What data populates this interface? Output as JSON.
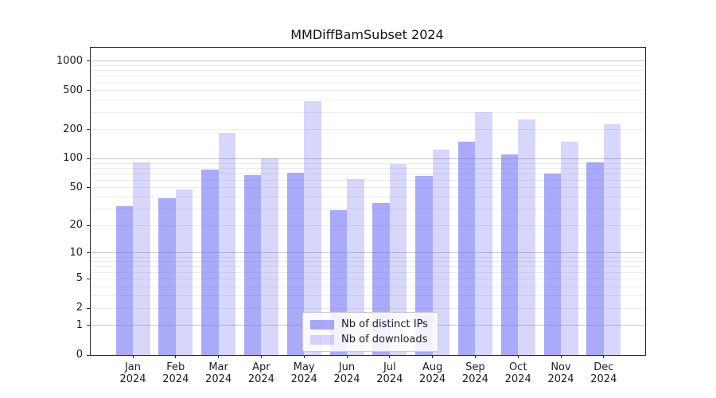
{
  "chart_data": {
    "type": "bar",
    "title": "MMDiffBamSubset 2024",
    "y_scale": "log1p",
    "y_ticks": [
      0,
      1,
      2,
      5,
      10,
      20,
      50,
      100,
      200,
      500,
      1000
    ],
    "grid": "both",
    "legend_position": "lower center",
    "categories": [
      {
        "month": "Jan",
        "year": "2024"
      },
      {
        "month": "Feb",
        "year": "2024"
      },
      {
        "month": "Mar",
        "year": "2024"
      },
      {
        "month": "Apr",
        "year": "2024"
      },
      {
        "month": "May",
        "year": "2024"
      },
      {
        "month": "Jun",
        "year": "2024"
      },
      {
        "month": "Jul",
        "year": "2024"
      },
      {
        "month": "Aug",
        "year": "2024"
      },
      {
        "month": "Sep",
        "year": "2024"
      },
      {
        "month": "Oct",
        "year": "2024"
      },
      {
        "month": "Nov",
        "year": "2024"
      },
      {
        "month": "Dec",
        "year": "2024"
      }
    ],
    "series": [
      {
        "name": "Nb of distinct IPs",
        "color": "#6464f5",
        "alpha": 0.55,
        "rendered_color": "#aaaaf2",
        "values": [
          32,
          39,
          78,
          68,
          72,
          29,
          35,
          67,
          150,
          110,
          71,
          92
        ]
      },
      {
        "name": "Nb of downloads",
        "color": "#6464f5",
        "alpha": 0.26,
        "rendered_color": "#d8d8f8",
        "values": [
          91,
          48,
          183,
          101,
          390,
          62,
          88,
          124,
          298,
          255,
          150,
          226
        ]
      }
    ]
  }
}
